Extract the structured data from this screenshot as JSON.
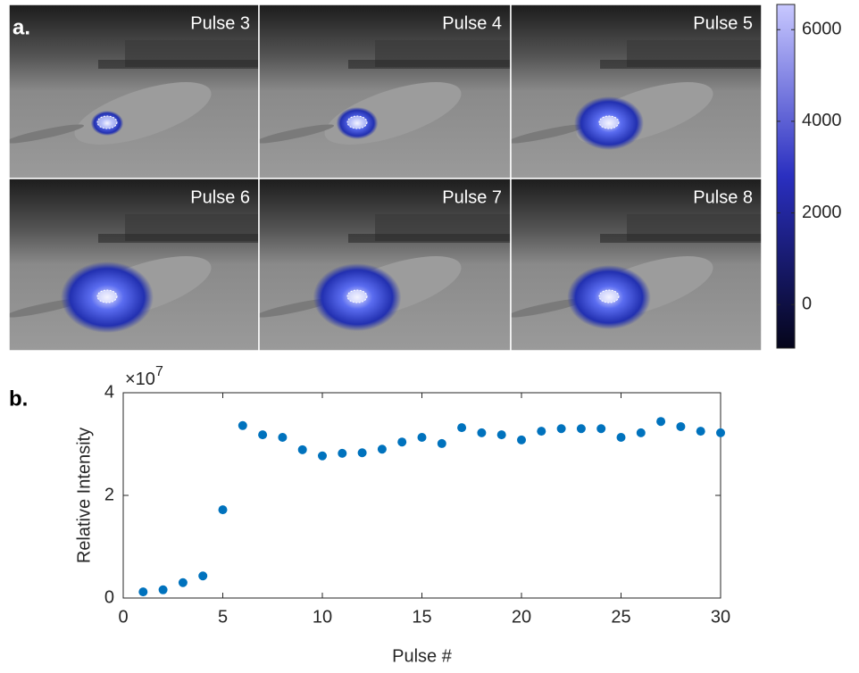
{
  "chart_data": [
    {
      "type": "image-grid",
      "panel_label": "a.",
      "panels": [
        "Pulse 3",
        "Pulse 4",
        "Pulse 5",
        "Pulse 6",
        "Pulse 7",
        "Pulse 8"
      ],
      "colorbar": {
        "clim": [
          -950,
          6550
        ],
        "ticks": [
          0,
          2000,
          4000,
          6000
        ],
        "colors": [
          "#05051a",
          "#2a2fc0",
          "#c8c8ff"
        ]
      }
    },
    {
      "type": "scatter",
      "panel_label": "b.",
      "color": "#0072bd",
      "xlabel": "Pulse #",
      "ylabel": "Relative Intensity",
      "y_multiplier": {
        "base": "×10",
        "exponent": "7"
      },
      "x": [
        1,
        2,
        3,
        4,
        5,
        6,
        7,
        8,
        9,
        10,
        11,
        12,
        13,
        14,
        15,
        16,
        17,
        18,
        19,
        20,
        21,
        22,
        23,
        24,
        25,
        26,
        27,
        28,
        29,
        30
      ],
      "values": [
        0.12,
        0.16,
        0.3,
        0.43,
        1.72,
        3.36,
        3.18,
        3.13,
        2.89,
        2.77,
        2.82,
        2.83,
        2.9,
        3.04,
        3.13,
        3.01,
        3.32,
        3.22,
        3.18,
        3.08,
        3.25,
        3.3,
        3.3,
        3.3,
        3.13,
        3.22,
        3.44,
        3.34,
        3.25,
        3.22
      ],
      "xlim": [
        0,
        30
      ],
      "ylim": [
        0,
        4
      ],
      "xticks": [
        0,
        5,
        10,
        15,
        20,
        25,
        30
      ],
      "yticks": [
        0,
        2,
        4
      ]
    }
  ]
}
